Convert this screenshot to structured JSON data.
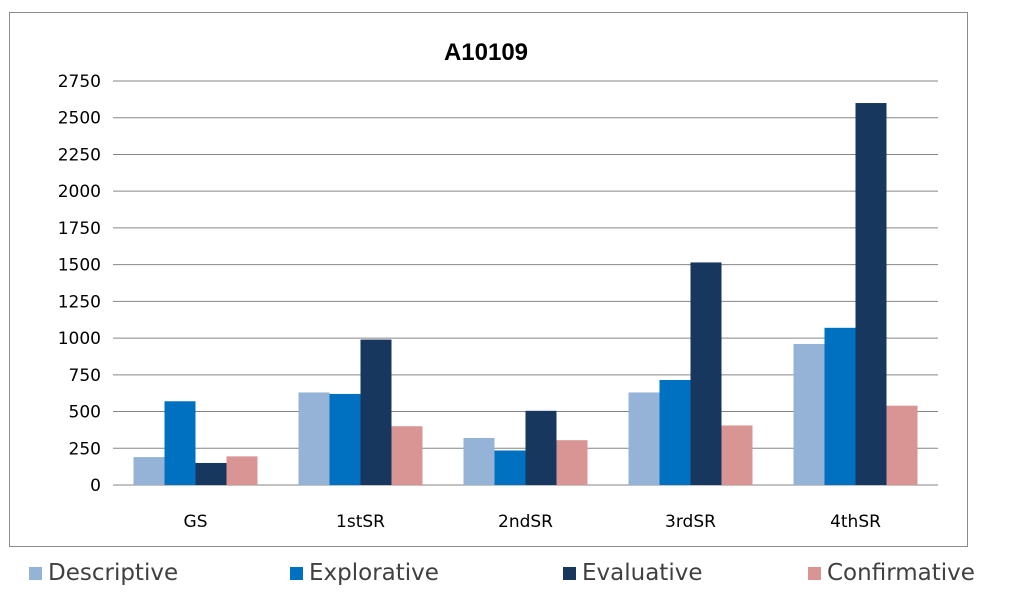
{
  "chart_data": {
    "type": "bar",
    "title": "A10109",
    "categories": [
      "GS",
      "1stSR",
      "2ndSR",
      "3rdSR",
      "4thSR"
    ],
    "series": [
      {
        "name": "Descriptive",
        "color": "#95b3d7",
        "values": [
          190,
          630,
          320,
          630,
          960
        ]
      },
      {
        "name": "Explorative",
        "color": "#0070c0",
        "values": [
          570,
          620,
          235,
          715,
          1070
        ]
      },
      {
        "name": "Evaluative",
        "color": "#17375e",
        "values": [
          150,
          990,
          505,
          1515,
          2600
        ]
      },
      {
        "name": "Confirmative",
        "color": "#d99594",
        "values": [
          195,
          400,
          305,
          405,
          540
        ]
      }
    ],
    "ylim": [
      0,
      2750
    ],
    "yticks": [
      0,
      250,
      500,
      750,
      1000,
      1250,
      1500,
      1750,
      2000,
      2250,
      2500,
      2750
    ],
    "grid": true,
    "legend_position": "bottom",
    "xlabel": "",
    "ylabel": ""
  }
}
